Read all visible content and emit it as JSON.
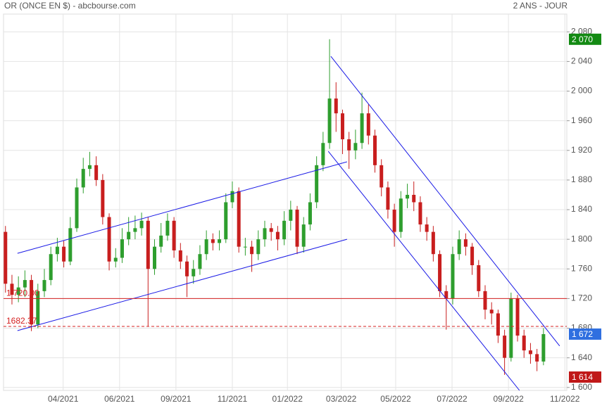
{
  "chart_data": {
    "type": "candlestick",
    "title": "OR (ONCE EN $) - abcbourse.com",
    "subtitle": "2 ANS - JOUR",
    "up_color": "#2e9e2e",
    "down_color": "#c81e1e",
    "xlim": [
      -0.3,
      86.6
    ],
    "ylim": [
      1596,
      2104
    ],
    "grid": true,
    "yticks": [
      {
        "value": 1600,
        "label": "1 600"
      },
      {
        "value": 1640,
        "label": "1 640"
      },
      {
        "value": 1680,
        "label": "1 680"
      },
      {
        "value": 1720,
        "label": "1 720"
      },
      {
        "value": 1760,
        "label": "1 760"
      },
      {
        "value": 1800,
        "label": "1 800"
      },
      {
        "value": 1840,
        "label": "1 840"
      },
      {
        "value": 1880,
        "label": "1 880"
      },
      {
        "value": 1920,
        "label": "1 920"
      },
      {
        "value": 1960,
        "label": "1 960"
      },
      {
        "value": 2000,
        "label": "2 000"
      },
      {
        "value": 2040,
        "label": "2 040"
      },
      {
        "value": 2080,
        "label": "2 080"
      }
    ],
    "xticks": [
      {
        "value": 8.9,
        "label": "04/2021"
      },
      {
        "value": 17.6,
        "label": "06/2021"
      },
      {
        "value": 26.3,
        "label": "09/2021"
      },
      {
        "value": 35,
        "label": "11/2021"
      },
      {
        "value": 43.5,
        "label": "01/2022"
      },
      {
        "value": 51.8,
        "label": "03/2022"
      },
      {
        "value": 60.2,
        "label": "05/2022"
      },
      {
        "value": 68.9,
        "label": "07/2022"
      },
      {
        "value": 77.6,
        "label": "09/2022"
      },
      {
        "value": 86.3,
        "label": "11/2022"
      }
    ],
    "open": [
      1810,
      1740,
      1725,
      1735,
      1745,
      1685,
      1730,
      1745,
      1780,
      1790,
      1770,
      1815,
      1870,
      1895,
      1900,
      1880,
      1830,
      1770,
      1775,
      1800,
      1810,
      1815,
      1825,
      1760,
      1790,
      1805,
      1825,
      1785,
      1770,
      1750,
      1760,
      1780,
      1800,
      1795,
      1800,
      1850,
      1865,
      1790,
      1790,
      1780,
      1800,
      1815,
      1810,
      1800,
      1825,
      1840,
      1790,
      1820,
      1850,
      1900,
      1930,
      1990,
      1970,
      1935,
      1920,
      1930,
      1970,
      1940,
      1900,
      1870,
      1840,
      1810,
      1855,
      1860,
      1850,
      1820,
      1810,
      1780,
      1730,
      1720,
      1780,
      1800,
      1790,
      1765,
      1730,
      1705,
      1700,
      1670,
      1640,
      1720,
      1670,
      1650,
      1645,
      1635
    ],
    "high": [
      1818,
      1752,
      1750,
      1758,
      1752,
      1740,
      1760,
      1790,
      1802,
      1798,
      1830,
      1882,
      1910,
      1918,
      1912,
      1888,
      1835,
      1788,
      1815,
      1830,
      1832,
      1836,
      1830,
      1800,
      1822,
      1835,
      1830,
      1795,
      1778,
      1772,
      1792,
      1812,
      1808,
      1812,
      1862,
      1878,
      1870,
      1802,
      1798,
      1812,
      1825,
      1822,
      1818,
      1838,
      1852,
      1845,
      1830,
      1862,
      1912,
      1945,
      2070,
      2012,
      1975,
      1945,
      1948,
      1998,
      1982,
      1948,
      1908,
      1878,
      1848,
      1865,
      1875,
      1878,
      1858,
      1830,
      1818,
      1785,
      1738,
      1790,
      1812,
      1808,
      1795,
      1772,
      1738,
      1715,
      1705,
      1678,
      1728,
      1725,
      1678,
      1660,
      1652,
      1680
    ],
    "low": [
      1728,
      1712,
      1715,
      1722,
      1676,
      1680,
      1722,
      1738,
      1770,
      1762,
      1765,
      1810,
      1862,
      1885,
      1872,
      1820,
      1758,
      1762,
      1768,
      1792,
      1800,
      1805,
      1683,
      1752,
      1782,
      1798,
      1775,
      1760,
      1722,
      1740,
      1752,
      1772,
      1785,
      1785,
      1795,
      1842,
      1782,
      1778,
      1756,
      1772,
      1790,
      1798,
      1785,
      1792,
      1812,
      1780,
      1782,
      1812,
      1842,
      1892,
      1922,
      1945,
      1915,
      1895,
      1908,
      1922,
      1928,
      1890,
      1858,
      1828,
      1790,
      1802,
      1842,
      1838,
      1810,
      1798,
      1770,
      1722,
      1678,
      1712,
      1772,
      1778,
      1752,
      1722,
      1692,
      1685,
      1660,
      1617,
      1635,
      1662,
      1640,
      1632,
      1622,
      1630
    ],
    "close": [
      1740,
      1725,
      1735,
      1745,
      1685,
      1730,
      1745,
      1780,
      1790,
      1770,
      1815,
      1870,
      1895,
      1900,
      1880,
      1830,
      1770,
      1775,
      1800,
      1810,
      1815,
      1825,
      1760,
      1790,
      1805,
      1825,
      1785,
      1770,
      1750,
      1760,
      1780,
      1800,
      1795,
      1800,
      1850,
      1865,
      1790,
      1790,
      1780,
      1800,
      1815,
      1810,
      1800,
      1825,
      1840,
      1790,
      1820,
      1850,
      1900,
      1930,
      1990,
      1970,
      1935,
      1920,
      1930,
      1970,
      1940,
      1900,
      1870,
      1840,
      1810,
      1855,
      1860,
      1850,
      1820,
      1810,
      1780,
      1730,
      1720,
      1780,
      1800,
      1790,
      1765,
      1730,
      1705,
      1700,
      1670,
      1640,
      1720,
      1670,
      1650,
      1645,
      1635,
      1672
    ],
    "trendlines": [
      {
        "x": [
          1.85,
          52.7
        ],
        "y": [
          1781,
          1904.6
        ],
        "color": "#1a1ae6"
      },
      {
        "x": [
          1.85,
          52.7
        ],
        "y": [
          1676.7,
          1800
        ],
        "color": "#1a1ae6"
      },
      {
        "x": [
          50.2,
          85.5
        ],
        "y": [
          2047,
          1656
        ],
        "color": "#1a1ae6"
      },
      {
        "x": [
          49.8,
          79.3
        ],
        "y": [
          1918.8,
          1596
        ],
        "color": "#1a1ae6"
      }
    ],
    "levels": [
      {
        "value": 1720,
        "label": "1 720.00",
        "color": "#d42020",
        "dashed": false
      },
      {
        "value": 1682.37,
        "label": "1682.37",
        "color": "#d42020",
        "dashed": true
      }
    ],
    "price_tags": [
      {
        "value": 2070,
        "label": "2 070",
        "color": "#138a13"
      },
      {
        "value": 1672,
        "label": "1 672",
        "color": "#2f6fe0"
      },
      {
        "value": 1614,
        "label": "1 614",
        "color": "#c01818"
      }
    ]
  }
}
